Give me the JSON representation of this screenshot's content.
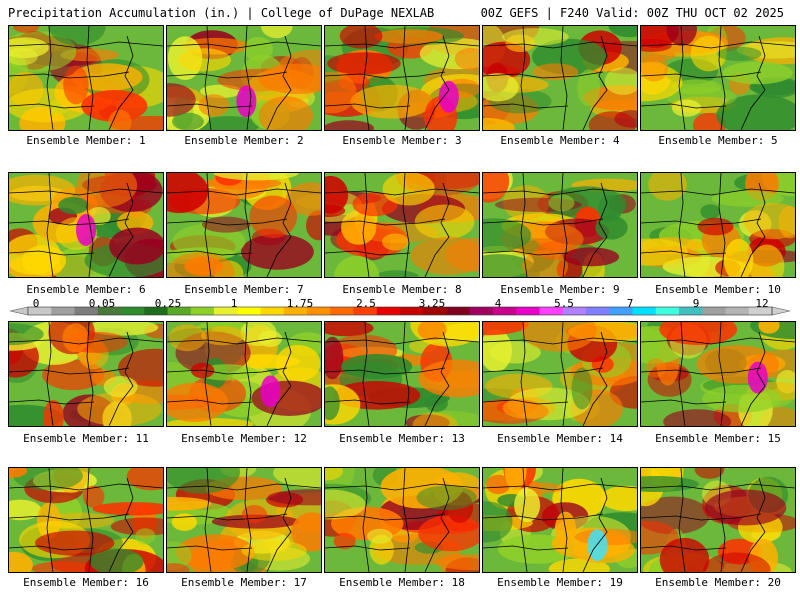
{
  "header": {
    "title_left": "Precipitation Accumulation (in.) | College of DuPage NEXLAB",
    "title_right": "00Z GEFS | F240 Valid: 00Z THU OCT 02 2025"
  },
  "panels": [
    {
      "label": "Ensemble Member: 1"
    },
    {
      "label": "Ensemble Member: 2"
    },
    {
      "label": "Ensemble Member: 3"
    },
    {
      "label": "Ensemble Member: 4"
    },
    {
      "label": "Ensemble Member: 5"
    },
    {
      "label": "Ensemble Member: 6"
    },
    {
      "label": "Ensemble Member: 7"
    },
    {
      "label": "Ensemble Member: 8"
    },
    {
      "label": "Ensemble Member: 9"
    },
    {
      "label": "Ensemble Member: 10"
    },
    {
      "label": "Ensemble Member: 11"
    },
    {
      "label": "Ensemble Member: 12"
    },
    {
      "label": "Ensemble Member: 13"
    },
    {
      "label": "Ensemble Member: 14"
    },
    {
      "label": "Ensemble Member: 15"
    },
    {
      "label": "Ensemble Member: 16"
    },
    {
      "label": "Ensemble Member: 17"
    },
    {
      "label": "Ensemble Member: 18"
    },
    {
      "label": "Ensemble Member: 19"
    },
    {
      "label": "Ensemble Member: 20"
    }
  ],
  "colorbar": {
    "tick_labels": [
      "0",
      "0.05",
      "0.25",
      "1",
      "1.75",
      "2.5",
      "3.25",
      "4",
      "5.5",
      "7",
      "9",
      "12"
    ],
    "colors": [
      "#c8c8c8",
      "#a0a0a0",
      "#7d7d7d",
      "#4a7a3a",
      "#2e8b2e",
      "#1e6e1e",
      "#5aaa28",
      "#8fd028",
      "#e8f030",
      "#ffff00",
      "#ffd800",
      "#ffb000",
      "#ff9000",
      "#ff6a00",
      "#ff4000",
      "#e80000",
      "#c80000",
      "#a00000",
      "#800020",
      "#a00060",
      "#c8008c",
      "#e800c8",
      "#ff40ff",
      "#b080ff",
      "#8080ff",
      "#40a0ff",
      "#00e0ff",
      "#40ffe0",
      "#40c0c0",
      "#a0a0a0",
      "#b4b4b4",
      "#d0d0d0"
    ]
  }
}
